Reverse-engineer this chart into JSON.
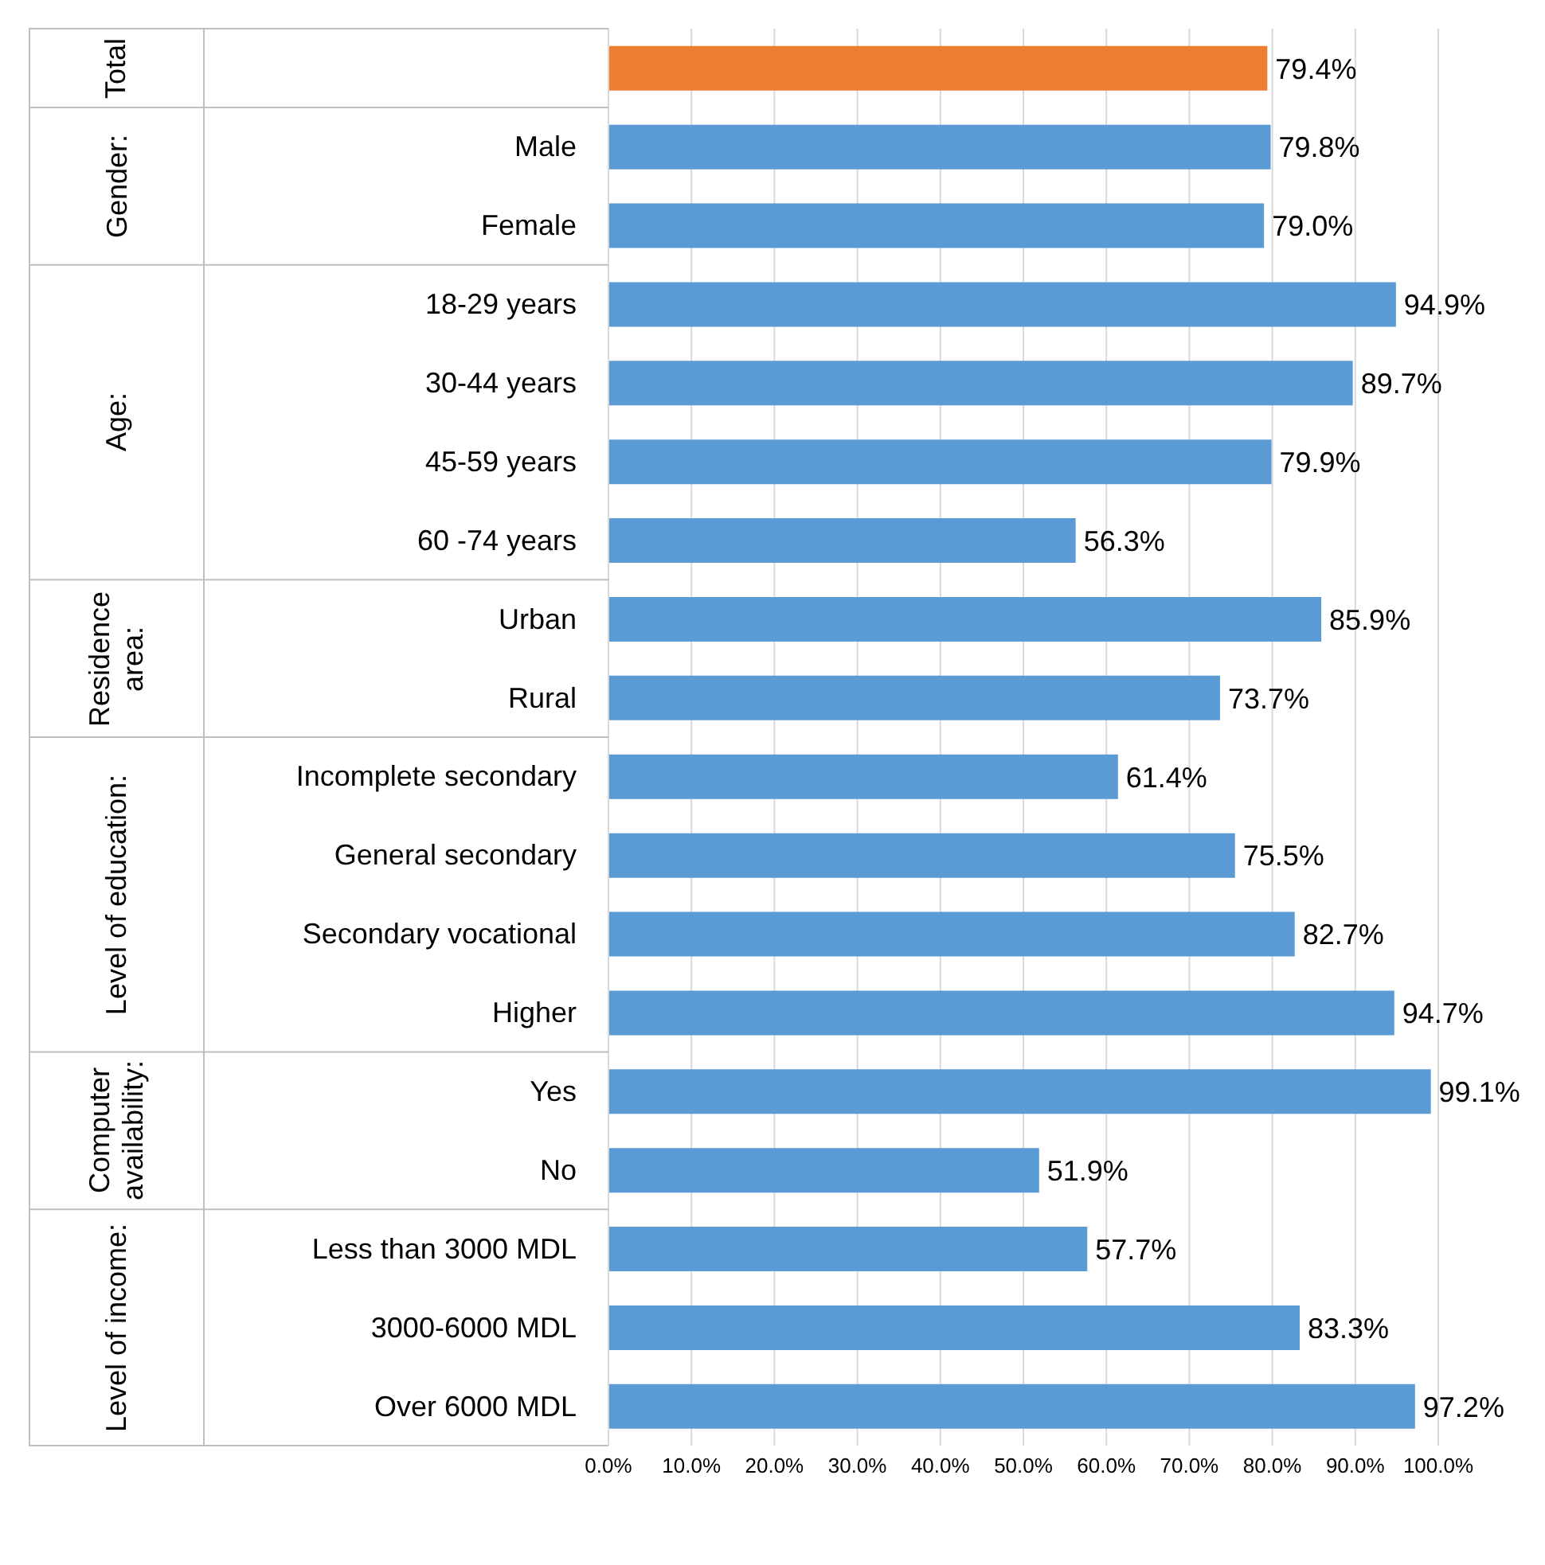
{
  "chart_data": {
    "type": "bar",
    "orientation": "horizontal",
    "categories": [
      null,
      "Male",
      "Female",
      "18-29 years",
      "30-44 years",
      "45-59 years",
      "60 -74 years",
      "Urban",
      "Rural",
      "Incomplete secondary ",
      "General secondary",
      "Secondary vocational",
      "Higher",
      "Yes",
      "No",
      "Less than 3000 MDL",
      "3000-6000 MDL",
      "Over 6000 MDL"
    ],
    "values": [
      79.4,
      79.8,
      79.0,
      94.9,
      89.7,
      79.9,
      56.3,
      85.9,
      73.7,
      61.4,
      75.5,
      82.7,
      94.7,
      99.1,
      51.9,
      57.7,
      83.3,
      97.2
    ],
    "colors": [
      "#ed7d31",
      "#5b9bd5",
      "#5b9bd5",
      "#5b9bd5",
      "#5b9bd5",
      "#5b9bd5",
      "#5b9bd5",
      "#5b9bd5",
      "#5b9bd5",
      "#5b9bd5",
      "#5b9bd5",
      "#5b9bd5",
      "#5b9bd5",
      "#5b9bd5",
      "#5b9bd5",
      "#5b9bd5",
      "#5b9bd5",
      "#5b9bd5"
    ],
    "value_labels": [
      "79.4%",
      "79.8%",
      "79.0%",
      "94.9%",
      "89.7%",
      "79.9%",
      "56.3%",
      "85.9%",
      "73.7%",
      "61.4%",
      "75.5%",
      "82.7%",
      "94.7%",
      "99.1%",
      "51.9%",
      "57.7%",
      "83.3%",
      "97.2%"
    ],
    "xlim": [
      0,
      100
    ],
    "xticks": [
      {
        "value": 0,
        "label": "0.0%"
      },
      {
        "value": 10,
        "label": "10.0%"
      },
      {
        "value": 20,
        "label": "20.0%"
      },
      {
        "value": 30,
        "label": "30.0%"
      },
      {
        "value": 40,
        "label": "40.0%"
      },
      {
        "value": 50,
        "label": "50.0%"
      },
      {
        "value": 60,
        "label": "60.0%"
      },
      {
        "value": 70,
        "label": "70.0%"
      },
      {
        "value": 80,
        "label": "80.0%"
      },
      {
        "value": 90,
        "label": "90.0%"
      },
      {
        "value": 100,
        "label": "100.0%"
      }
    ],
    "grid": "x",
    "legend": false,
    "annotations": [
      "Total",
      "Gender:",
      "Age:",
      "Residence area:",
      "Level of education:",
      "Computer availability:",
      "Level of income:"
    ]
  }
}
